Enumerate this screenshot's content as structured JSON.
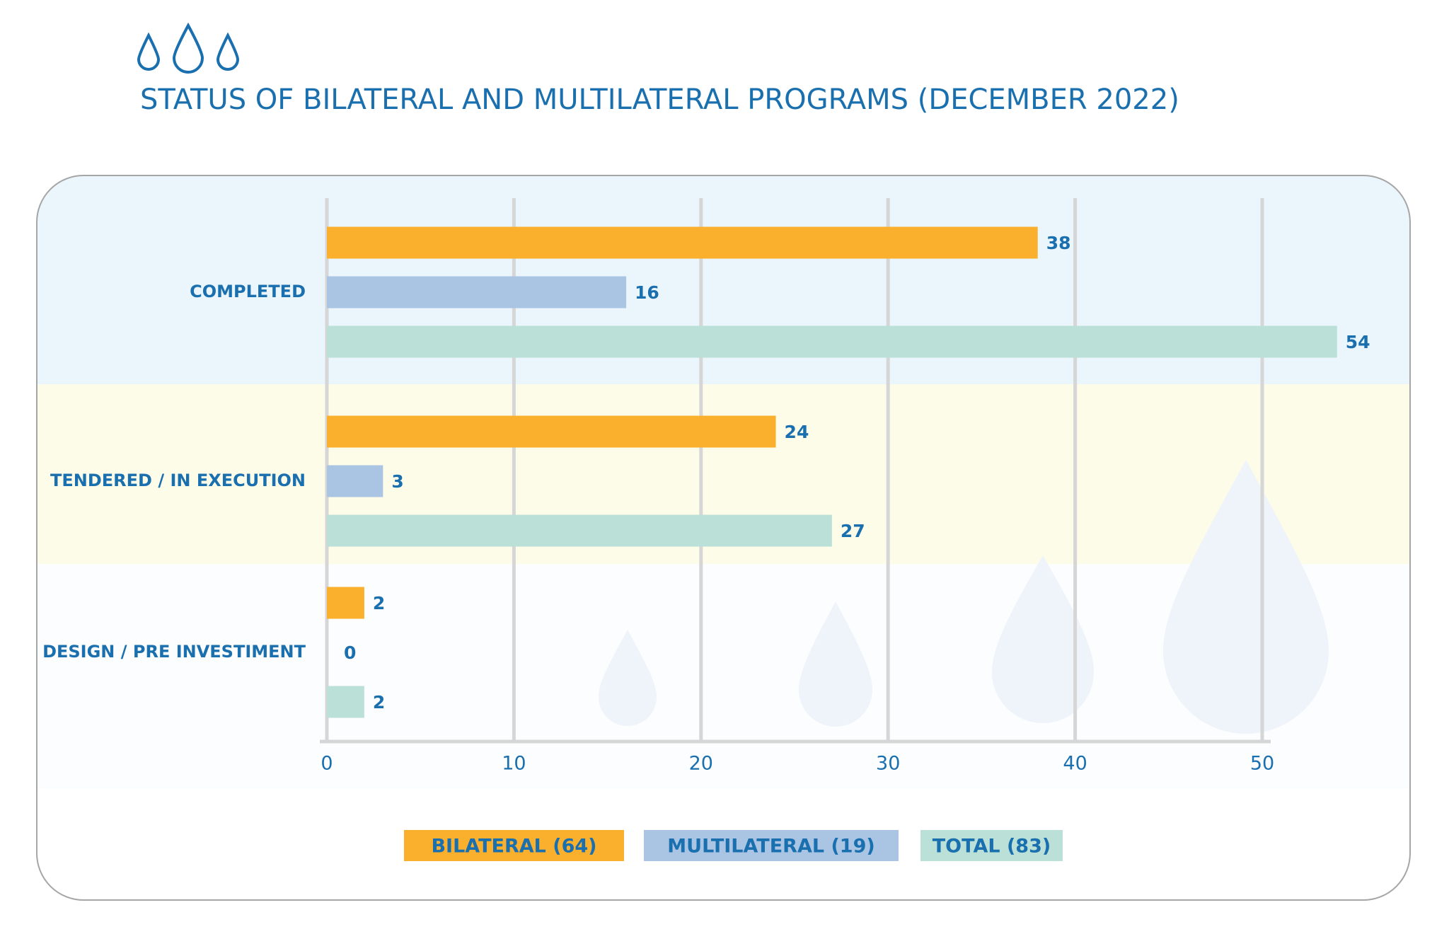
{
  "chart_data": {
    "type": "barh",
    "title": "STATUS OF BILATERAL AND MULTILATERAL PROGRAMS (DECEMBER 2022)",
    "categories": [
      "COMPLETED",
      "TENDERED / IN EXECUTION",
      "DESIGN / PRE INVESTIMENT"
    ],
    "series": [
      {
        "name": "BILATERAL (64)",
        "color": "#fbb02d",
        "values": [
          38,
          24,
          2
        ]
      },
      {
        "name": "MULTILATERAL (19)",
        "color": "#aac4e4",
        "values": [
          16,
          3,
          0
        ]
      },
      {
        "name": "TOTAL (83)",
        "color": "#bbe0d8",
        "values": [
          54,
          27,
          2
        ]
      }
    ],
    "xlim": [
      0,
      50
    ],
    "xticks": [
      0,
      10,
      20,
      30,
      40,
      50
    ],
    "grid": true,
    "legend": "bottom"
  }
}
